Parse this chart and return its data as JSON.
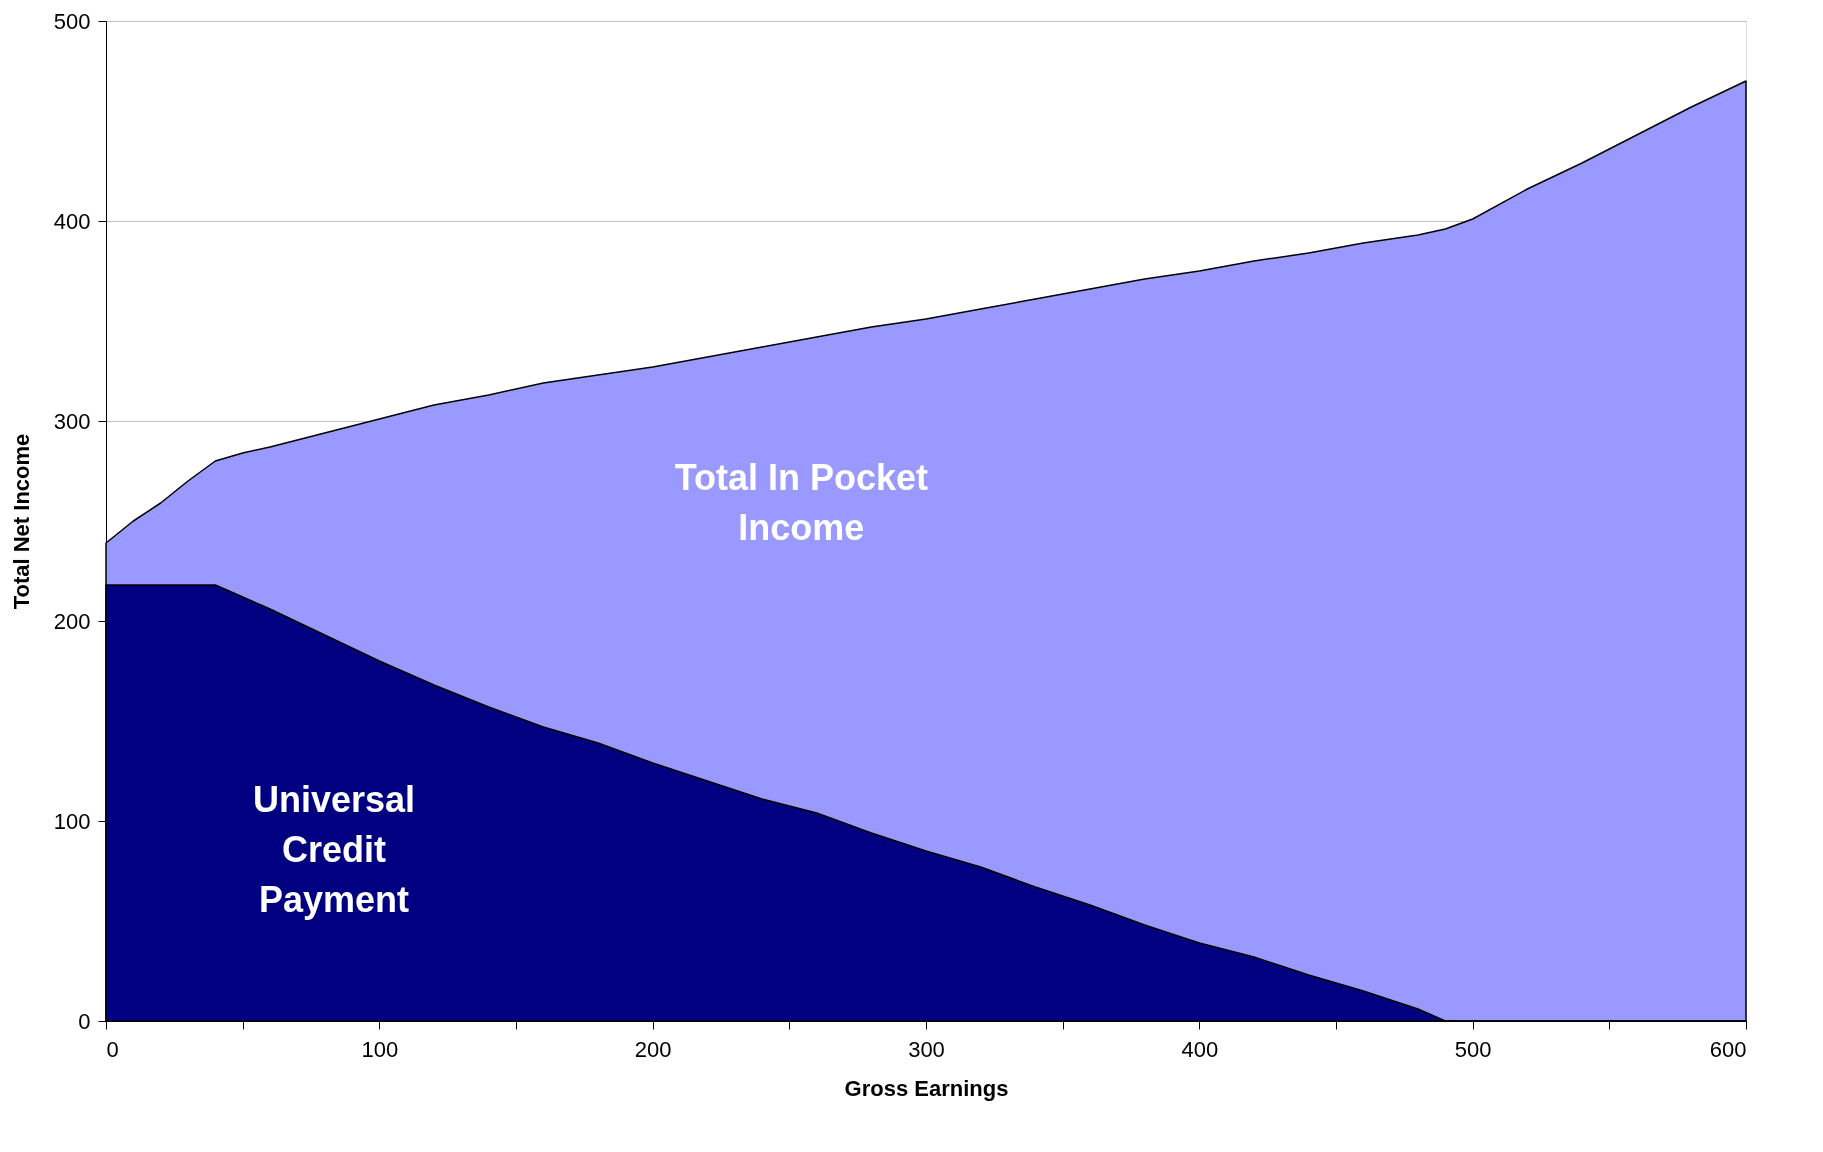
{
  "chart_data": {
    "type": "area",
    "xlabel": "Gross Earnings",
    "ylabel": "Total Net Income",
    "xlim": [
      0,
      600
    ],
    "ylim": [
      0,
      500
    ],
    "xticks": [
      0,
      {
        "value": 50,
        "label": null
      },
      100,
      {
        "value": 150,
        "label": null
      },
      200,
      {
        "value": 250,
        "label": null
      },
      300,
      {
        "value": 350,
        "label": null
      },
      400,
      {
        "value": 450,
        "label": null
      },
      500,
      {
        "value": 550,
        "label": null
      },
      600
    ],
    "yticks": [
      0,
      100,
      200,
      300,
      400,
      500
    ],
    "grid": "y",
    "legend": false,
    "series": [
      {
        "name": "Total In Pocket Income",
        "color": "#9999ff",
        "x": [
          0,
          10,
          20,
          30,
          40,
          50,
          60,
          80,
          100,
          120,
          140,
          160,
          180,
          200,
          220,
          240,
          260,
          280,
          300,
          320,
          340,
          360,
          380,
          400,
          420,
          440,
          460,
          480,
          490,
          500,
          520,
          540,
          560,
          580,
          600
        ],
        "values": [
          239,
          250,
          259,
          270,
          280,
          284,
          287,
          294,
          301,
          308,
          313,
          319,
          323,
          327,
          332,
          337,
          342,
          347,
          351,
          356,
          361,
          366,
          371,
          375,
          380,
          384,
          389,
          393,
          396,
          401,
          416,
          429,
          443,
          457,
          470
        ]
      },
      {
        "name": "Universal Credit Payment",
        "color": "#000080",
        "x": [
          0,
          40,
          60,
          80,
          100,
          120,
          140,
          160,
          180,
          200,
          220,
          240,
          260,
          280,
          300,
          320,
          340,
          360,
          380,
          400,
          420,
          440,
          460,
          480,
          490,
          600
        ],
        "values": [
          218,
          218,
          206,
          193,
          180,
          168,
          157,
          147,
          139,
          129,
          120,
          111,
          104,
          94,
          85,
          77,
          67,
          58,
          48,
          39,
          32,
          23,
          15,
          6,
          0,
          0
        ]
      }
    ]
  }
}
